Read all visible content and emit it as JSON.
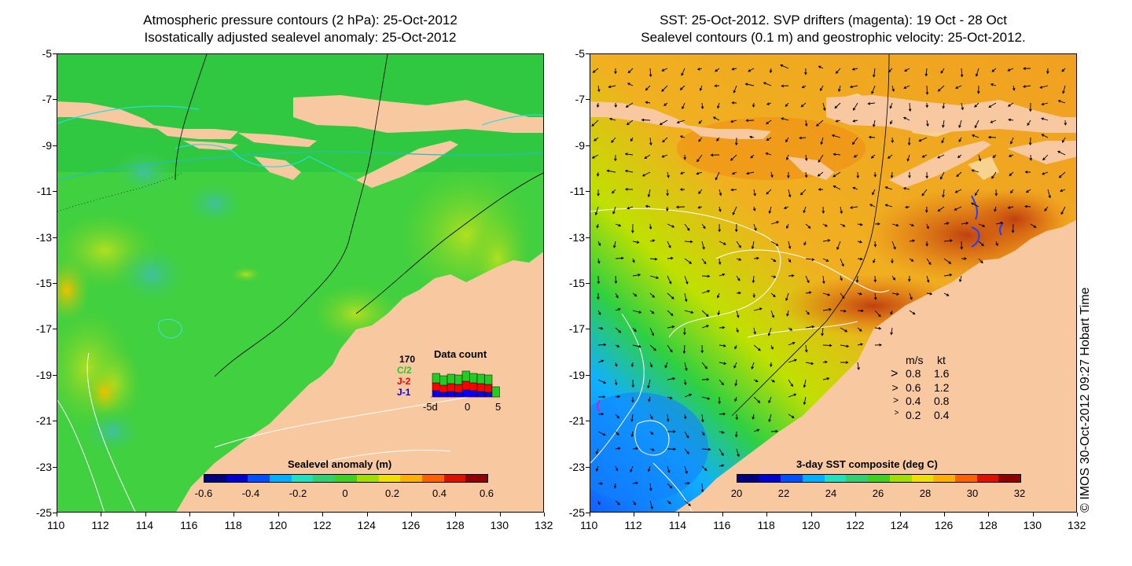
{
  "left": {
    "title1": "Atmospheric pressure contours (2 hPa): 25-Oct-2012",
    "title2": "Isostatically adjusted sealevel anomaly: 25-Oct-2012",
    "colorbar_title": "Sealevel anomaly (m)",
    "colorbar_labels": [
      "-0.6",
      "-0.4",
      "-0.2",
      "0",
      "0.2",
      "0.4",
      "0.6"
    ],
    "colorbar_colors": [
      "#00007f",
      "#0000d0",
      "#0050ff",
      "#00b0ff",
      "#20e0c0",
      "#30d070",
      "#40d020",
      "#a0e000",
      "#f0e000",
      "#ffb000",
      "#ff6000",
      "#e01000",
      "#900000"
    ],
    "data_count": {
      "title": "Data count",
      "max_label": "170",
      "series": [
        {
          "name": "C/2",
          "color": "#22cc22"
        },
        {
          "name": "J-2",
          "color": "#ff0000"
        },
        {
          "name": "J-1",
          "color": "#0000ff"
        }
      ],
      "axis_labels": [
        "-5d",
        "0",
        "5"
      ]
    }
  },
  "right": {
    "title1": "SST: 25-Oct-2012. SVP drifters (magenta): 19 Oct - 28 Oct",
    "title2": "Sealevel contours (0.1 m) and geostrophic velocity: 25-Oct-2012.",
    "colorbar_title": "3-day SST composite (deg C)",
    "colorbar_labels": [
      "20",
      "22",
      "24",
      "26",
      "28",
      "30",
      "32"
    ],
    "colorbar_colors": [
      "#00007f",
      "#0000d0",
      "#0050ff",
      "#00b0ff",
      "#20e0c0",
      "#30d070",
      "#40d020",
      "#a0e000",
      "#f0e000",
      "#ffb000",
      "#ff6000",
      "#e01000",
      "#900000"
    ],
    "speed_legend": {
      "header_ms": "m/s",
      "header_kt": "kt",
      "rows": [
        {
          "ms": "0.8",
          "kt": "1.6"
        },
        {
          "ms": "0.6",
          "kt": "1.2"
        },
        {
          "ms": "0.4",
          "kt": "0.8"
        },
        {
          "ms": "0.2",
          "kt": "0.4"
        }
      ]
    }
  },
  "axes": {
    "x_ticks": [
      "110",
      "112",
      "114",
      "116",
      "118",
      "120",
      "122",
      "124",
      "126",
      "128",
      "130",
      "132"
    ],
    "y_ticks": [
      "-5",
      "-7",
      "-9",
      "-11",
      "-13",
      "-15",
      "-17",
      "-19",
      "-21",
      "-23",
      "-25"
    ]
  },
  "copyright": "© IMOS 30-Oct-2012 09:27 Hobart Time",
  "colors": {
    "land": "#f8c8a0",
    "left_ocean": "#40d040",
    "right_ocean": "#f0a020",
    "contour_white": "#ffffff",
    "drifter_magenta": "#cc22cc"
  }
}
